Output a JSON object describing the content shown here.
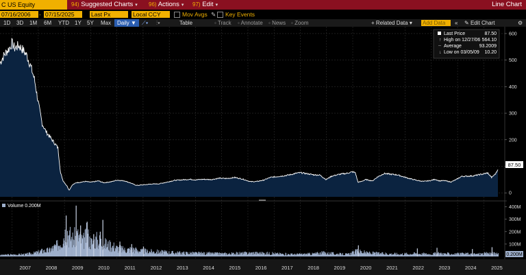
{
  "header": {
    "ticker": "C US Equity",
    "menus": [
      {
        "num": "94)",
        "label": "Suggested Charts"
      },
      {
        "num": "96)",
        "label": "Actions"
      },
      {
        "num": "97)",
        "label": "Edit"
      }
    ],
    "chart_kind": "Line Chart"
  },
  "settings": {
    "start_date": "07/16/2006",
    "end_date": "07/15/2025",
    "field": "Last Px",
    "currency": "Local CCY",
    "mov_avgs": "Mov Avgs",
    "key_events": "Key Events"
  },
  "toolbar": {
    "ranges": [
      "1D",
      "3D",
      "1M",
      "6M",
      "YTD",
      "1Y",
      "5Y",
      "Max"
    ],
    "frequency": "Daily",
    "table": "Table",
    "related_data": "Related Data",
    "add_data_placeholder": "Add Data",
    "edit_chart": "Edit Chart",
    "tools": [
      "Track",
      "Annotate",
      "News",
      "Zoom"
    ]
  },
  "legend": {
    "rows": [
      {
        "label": "Last Price",
        "value": "87.50"
      },
      {
        "label": "High on 12/27/06",
        "value": "564.10"
      },
      {
        "label": "Average",
        "value": "93.2009"
      },
      {
        "label": "Low on 03/05/09",
        "value": "10.20"
      }
    ]
  },
  "last_price_tag": "87.50",
  "volume_label": "Volume  0.200M",
  "volume_tag": "0.200M",
  "colors": {
    "accent": "#f0b000",
    "header": "#8a1020",
    "area": "#0b2340",
    "line": "#ffffff",
    "volume": "#9fb0cc"
  },
  "chart_data": [
    {
      "type": "area",
      "title": "",
      "series": [
        {
          "name": "Last Price"
        }
      ],
      "ylim": [
        -15,
        605
      ],
      "y_ticks": [
        "0",
        "100",
        "200",
        "300",
        "400",
        "500",
        "600"
      ],
      "x_ticks": [
        "2007",
        "2008",
        "2009",
        "2010",
        "2011",
        "2012",
        "2013",
        "2014",
        "2015",
        "2016",
        "2017",
        "2018",
        "2019",
        "2020",
        "2021",
        "2022",
        "2023",
        "2024",
        "2025"
      ],
      "points": [
        [
          2006.54,
          490
        ],
        [
          2006.7,
          520
        ],
        [
          2006.9,
          545
        ],
        [
          2006.99,
          564
        ],
        [
          2007.1,
          545
        ],
        [
          2007.25,
          555
        ],
        [
          2007.4,
          540
        ],
        [
          2007.55,
          520
        ],
        [
          2007.7,
          480
        ],
        [
          2007.85,
          430
        ],
        [
          2008.0,
          340
        ],
        [
          2008.15,
          260
        ],
        [
          2008.3,
          230
        ],
        [
          2008.45,
          210
        ],
        [
          2008.6,
          190
        ],
        [
          2008.75,
          170
        ],
        [
          2008.85,
          75
        ],
        [
          2008.95,
          45
        ],
        [
          2009.1,
          25
        ],
        [
          2009.18,
          10
        ],
        [
          2009.3,
          30
        ],
        [
          2009.45,
          38
        ],
        [
          2009.6,
          40
        ],
        [
          2009.8,
          43
        ],
        [
          2010.0,
          40
        ],
        [
          2010.3,
          45
        ],
        [
          2010.5,
          38
        ],
        [
          2010.8,
          42
        ],
        [
          2011.0,
          48
        ],
        [
          2011.3,
          45
        ],
        [
          2011.5,
          38
        ],
        [
          2011.75,
          28
        ],
        [
          2012.0,
          30
        ],
        [
          2012.3,
          33
        ],
        [
          2012.6,
          34
        ],
        [
          2012.9,
          40
        ],
        [
          2013.2,
          47
        ],
        [
          2013.5,
          49
        ],
        [
          2013.8,
          51
        ],
        [
          2014.0,
          49
        ],
        [
          2014.3,
          51
        ],
        [
          2014.6,
          50
        ],
        [
          2014.9,
          55
        ],
        [
          2015.2,
          54
        ],
        [
          2015.5,
          58
        ],
        [
          2015.8,
          52
        ],
        [
          2016.1,
          42
        ],
        [
          2016.35,
          43
        ],
        [
          2016.6,
          48
        ],
        [
          2016.85,
          58
        ],
        [
          2017.1,
          61
        ],
        [
          2017.35,
          64
        ],
        [
          2017.6,
          68
        ],
        [
          2017.85,
          74
        ],
        [
          2018.0,
          76
        ],
        [
          2018.2,
          73
        ],
        [
          2018.5,
          68
        ],
        [
          2018.75,
          67
        ],
        [
          2018.98,
          50
        ],
        [
          2019.2,
          63
        ],
        [
          2019.5,
          70
        ],
        [
          2019.8,
          74
        ],
        [
          2019.98,
          79
        ],
        [
          2020.1,
          76
        ],
        [
          2020.2,
          40
        ],
        [
          2020.3,
          42
        ],
        [
          2020.5,
          50
        ],
        [
          2020.75,
          45
        ],
        [
          2020.95,
          60
        ],
        [
          2021.2,
          73
        ],
        [
          2021.45,
          70
        ],
        [
          2021.7,
          68
        ],
        [
          2021.95,
          60
        ],
        [
          2022.2,
          53
        ],
        [
          2022.45,
          47
        ],
        [
          2022.7,
          43
        ],
        [
          2022.95,
          46
        ],
        [
          2023.15,
          51
        ],
        [
          2023.3,
          45
        ],
        [
          2023.5,
          46
        ],
        [
          2023.75,
          41
        ],
        [
          2023.95,
          50
        ],
        [
          2024.15,
          62
        ],
        [
          2024.4,
          63
        ],
        [
          2024.6,
          64
        ],
        [
          2024.8,
          68
        ],
        [
          2024.98,
          71
        ],
        [
          2025.15,
          75
        ],
        [
          2025.3,
          58
        ],
        [
          2025.45,
          72
        ],
        [
          2025.54,
          87.5
        ]
      ]
    },
    {
      "type": "bar",
      "title": "",
      "series": [
        {
          "name": "Volume"
        }
      ],
      "ylim": [
        0,
        420
      ],
      "y_ticks": [
        "100M",
        "200M",
        "300M",
        "400M"
      ],
      "points": [
        [
          2006.54,
          12
        ],
        [
          2007.0,
          15
        ],
        [
          2007.5,
          18
        ],
        [
          2007.9,
          30
        ],
        [
          2008.1,
          45
        ],
        [
          2008.4,
          50
        ],
        [
          2008.7,
          90
        ],
        [
          2008.9,
          140
        ],
        [
          2009.05,
          230
        ],
        [
          2009.15,
          180
        ],
        [
          2009.3,
          150
        ],
        [
          2009.5,
          170
        ],
        [
          2009.7,
          120
        ],
        [
          2009.85,
          190
        ],
        [
          2009.95,
          130
        ],
        [
          2010.05,
          110
        ],
        [
          2010.2,
          140
        ],
        [
          2010.4,
          120
        ],
        [
          2010.6,
          100
        ],
        [
          2010.8,
          90
        ],
        [
          2011.0,
          70
        ],
        [
          2011.3,
          55
        ],
        [
          2011.6,
          60
        ],
        [
          2011.9,
          45
        ],
        [
          2012.3,
          40
        ],
        [
          2012.8,
          35
        ],
        [
          2013.3,
          30
        ],
        [
          2013.8,
          28
        ],
        [
          2014.3,
          25
        ],
        [
          2014.8,
          24
        ],
        [
          2015.3,
          22
        ],
        [
          2015.8,
          26
        ],
        [
          2016.2,
          30
        ],
        [
          2016.8,
          25
        ],
        [
          2017.3,
          20
        ],
        [
          2017.8,
          18
        ],
        [
          2018.3,
          20
        ],
        [
          2018.9,
          30
        ],
        [
          2019.3,
          22
        ],
        [
          2019.8,
          18
        ],
        [
          2020.2,
          45
        ],
        [
          2020.5,
          30
        ],
        [
          2020.9,
          25
        ],
        [
          2021.4,
          22
        ],
        [
          2021.9,
          20
        ],
        [
          2022.4,
          24
        ],
        [
          2022.9,
          20
        ],
        [
          2023.3,
          25
        ],
        [
          2023.8,
          20
        ],
        [
          2024.3,
          22
        ],
        [
          2024.8,
          20
        ],
        [
          2025.3,
          28
        ],
        [
          2025.54,
          18
        ]
      ],
      "spikes": [
        [
          2009.05,
          330
        ],
        [
          2009.43,
          410
        ],
        [
          2009.85,
          280
        ],
        [
          2010.45,
          295
        ],
        [
          2010.35,
          200
        ],
        [
          2009.6,
          250
        ],
        [
          2010.1,
          180
        ],
        [
          2011.1,
          120
        ],
        [
          2011.55,
          100
        ],
        [
          2012.0,
          80
        ],
        [
          2020.2,
          90
        ],
        [
          2022.45,
          65
        ],
        [
          2023.2,
          70
        ],
        [
          2024.55,
          60
        ],
        [
          2025.3,
          75
        ]
      ]
    }
  ]
}
